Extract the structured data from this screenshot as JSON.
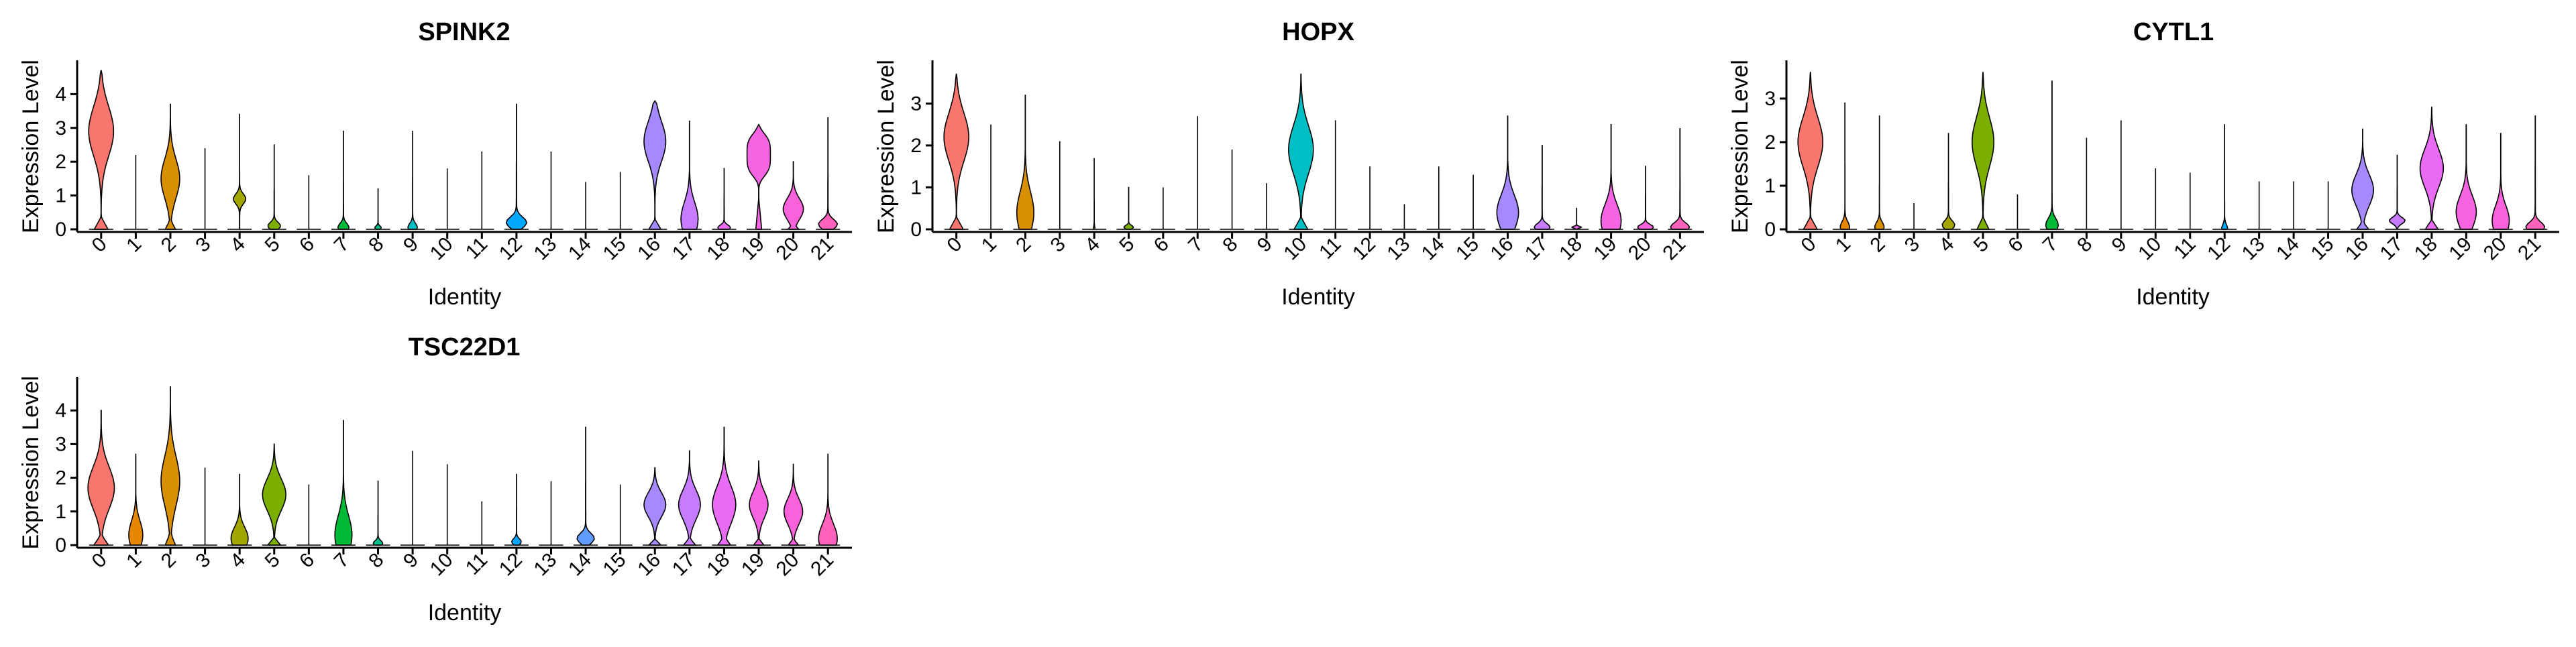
{
  "chart_data": [
    {
      "type": "violin",
      "title": "SPINK2",
      "xlabel": "Identity",
      "ylabel": "Expression Level",
      "categories": [
        "0",
        "1",
        "2",
        "3",
        "4",
        "5",
        "6",
        "7",
        "8",
        "9",
        "10",
        "11",
        "12",
        "13",
        "14",
        "15",
        "16",
        "17",
        "18",
        "19",
        "20",
        "21"
      ],
      "ylim": [
        0,
        4.9
      ],
      "yticks": [
        0,
        1,
        2,
        3,
        4
      ],
      "max_values": [
        4.7,
        2.2,
        3.7,
        2.4,
        3.4,
        2.5,
        1.6,
        2.9,
        1.2,
        2.9,
        1.8,
        2.3,
        3.7,
        2.3,
        1.4,
        1.7,
        3.8,
        3.2,
        1.8,
        3.1,
        2.0,
        3.3
      ],
      "violins": [
        {
          "peak": 2.9,
          "width": 0.8,
          "shape": "broad"
        },
        {
          "peak": 0.0,
          "width": 0.0,
          "shape": "line"
        },
        {
          "peak": 1.5,
          "width": 0.6,
          "shape": "broad"
        },
        {
          "peak": 0.0,
          "width": 0.0,
          "shape": "line"
        },
        {
          "peak": 0.9,
          "width": 0.4,
          "shape": "spike"
        },
        {
          "peak": 0.1,
          "width": 0.4,
          "shape": "spike"
        },
        {
          "peak": 0.0,
          "width": 0.0,
          "shape": "line"
        },
        {
          "peak": 0.05,
          "width": 0.35,
          "shape": "spike"
        },
        {
          "peak": 0.05,
          "width": 0.2,
          "shape": "spike"
        },
        {
          "peak": 0.05,
          "width": 0.3,
          "shape": "spike"
        },
        {
          "peak": 0.0,
          "width": 0.0,
          "shape": "line"
        },
        {
          "peak": 0.0,
          "width": 0.0,
          "shape": "line"
        },
        {
          "peak": 0.2,
          "width": 0.65,
          "shape": "spike"
        },
        {
          "peak": 0.0,
          "width": 0.0,
          "shape": "line"
        },
        {
          "peak": 0.0,
          "width": 0.0,
          "shape": "line"
        },
        {
          "peak": 0.0,
          "width": 0.0,
          "shape": "line"
        },
        {
          "peak": 2.6,
          "width": 0.7,
          "shape": "broad"
        },
        {
          "peak": 0.3,
          "width": 0.55,
          "shape": "broad"
        },
        {
          "peak": 0.05,
          "width": 0.4,
          "shape": "spike"
        },
        {
          "peak": 2.2,
          "width": 0.75,
          "shape": "flat"
        },
        {
          "peak": 0.6,
          "width": 0.65,
          "shape": "broad"
        },
        {
          "peak": 0.15,
          "width": 0.6,
          "shape": "spike"
        }
      ]
    },
    {
      "type": "violin",
      "title": "HOPX",
      "xlabel": "Identity",
      "ylabel": "Expression Level",
      "categories": [
        "0",
        "1",
        "2",
        "3",
        "4",
        "5",
        "6",
        "7",
        "8",
        "9",
        "10",
        "11",
        "12",
        "13",
        "14",
        "15",
        "16",
        "17",
        "18",
        "19",
        "20",
        "21"
      ],
      "ylim": [
        0,
        3.95
      ],
      "yticks": [
        0,
        1,
        2,
        3
      ],
      "max_values": [
        3.7,
        2.5,
        3.2,
        2.1,
        1.7,
        1.0,
        1.0,
        2.7,
        1.9,
        1.1,
        3.7,
        2.6,
        1.5,
        0.6,
        1.5,
        1.3,
        2.7,
        2.0,
        0.5,
        2.5,
        1.5,
        2.4
      ],
      "violins": [
        {
          "peak": 2.2,
          "width": 0.8,
          "shape": "broad"
        },
        {
          "peak": 0.0,
          "width": 0.0,
          "shape": "line"
        },
        {
          "peak": 0.4,
          "width": 0.55,
          "shape": "broad"
        },
        {
          "peak": 0.0,
          "width": 0.0,
          "shape": "line"
        },
        {
          "peak": 0.0,
          "width": 0.05,
          "shape": "spike"
        },
        {
          "peak": 0.05,
          "width": 0.3,
          "shape": "spike"
        },
        {
          "peak": 0.0,
          "width": 0.0,
          "shape": "line"
        },
        {
          "peak": 0.0,
          "width": 0.0,
          "shape": "line"
        },
        {
          "peak": 0.0,
          "width": 0.0,
          "shape": "line"
        },
        {
          "peak": 0.0,
          "width": 0.0,
          "shape": "line"
        },
        {
          "peak": 1.9,
          "width": 0.8,
          "shape": "broad"
        },
        {
          "peak": 0.0,
          "width": 0.0,
          "shape": "line"
        },
        {
          "peak": 0.0,
          "width": 0.0,
          "shape": "line"
        },
        {
          "peak": 0.0,
          "width": 0.0,
          "shape": "line"
        },
        {
          "peak": 0.0,
          "width": 0.0,
          "shape": "line"
        },
        {
          "peak": 0.0,
          "width": 0.0,
          "shape": "line"
        },
        {
          "peak": 0.4,
          "width": 0.7,
          "shape": "broad"
        },
        {
          "peak": 0.05,
          "width": 0.5,
          "shape": "spike"
        },
        {
          "peak": 0.05,
          "width": 0.3,
          "shape": "spike"
        },
        {
          "peak": 0.2,
          "width": 0.65,
          "shape": "broad"
        },
        {
          "peak": 0.05,
          "width": 0.5,
          "shape": "spike"
        },
        {
          "peak": 0.05,
          "width": 0.6,
          "shape": "spike"
        }
      ]
    },
    {
      "type": "violin",
      "title": "CYTL1",
      "xlabel": "Identity",
      "ylabel": "Expression Level",
      "categories": [
        "0",
        "1",
        "2",
        "3",
        "4",
        "5",
        "6",
        "7",
        "8",
        "9",
        "10",
        "11",
        "12",
        "13",
        "14",
        "15",
        "16",
        "17",
        "18",
        "19",
        "20",
        "21"
      ],
      "ylim": [
        0,
        3.8
      ],
      "yticks": [
        0,
        1,
        2,
        3
      ],
      "max_values": [
        3.6,
        2.9,
        2.6,
        0.6,
        2.2,
        3.6,
        0.8,
        3.4,
        2.1,
        2.5,
        1.4,
        1.3,
        2.4,
        1.1,
        1.1,
        1.1,
        2.3,
        1.7,
        2.8,
        2.4,
        2.2,
        2.6
      ],
      "violins": [
        {
          "peak": 2.0,
          "width": 0.8,
          "shape": "broad"
        },
        {
          "peak": 0.05,
          "width": 0.3,
          "shape": "spike"
        },
        {
          "peak": 0.05,
          "width": 0.3,
          "shape": "spike"
        },
        {
          "peak": 0.0,
          "width": 0.0,
          "shape": "line"
        },
        {
          "peak": 0.1,
          "width": 0.4,
          "shape": "spike"
        },
        {
          "peak": 2.0,
          "width": 0.7,
          "shape": "broad"
        },
        {
          "peak": 0.0,
          "width": 0.0,
          "shape": "line"
        },
        {
          "peak": 0.1,
          "width": 0.4,
          "shape": "spike"
        },
        {
          "peak": 0.0,
          "width": 0.0,
          "shape": "line"
        },
        {
          "peak": 0.0,
          "width": 0.0,
          "shape": "line"
        },
        {
          "peak": 0.0,
          "width": 0.0,
          "shape": "line"
        },
        {
          "peak": 0.0,
          "width": 0.0,
          "shape": "line"
        },
        {
          "peak": 0.0,
          "width": 0.2,
          "shape": "spike"
        },
        {
          "peak": 0.0,
          "width": 0.0,
          "shape": "line"
        },
        {
          "peak": 0.0,
          "width": 0.0,
          "shape": "line"
        },
        {
          "peak": 0.0,
          "width": 0.0,
          "shape": "line"
        },
        {
          "peak": 0.9,
          "width": 0.7,
          "shape": "broad"
        },
        {
          "peak": 0.2,
          "width": 0.5,
          "shape": "spike"
        },
        {
          "peak": 1.4,
          "width": 0.75,
          "shape": "broad"
        },
        {
          "peak": 0.4,
          "width": 0.65,
          "shape": "broad"
        },
        {
          "peak": 0.2,
          "width": 0.55,
          "shape": "broad"
        },
        {
          "peak": 0.05,
          "width": 0.6,
          "shape": "spike"
        }
      ]
    },
    {
      "type": "violin",
      "title": "TSC22D1",
      "xlabel": "Identity",
      "ylabel": "Expression Level",
      "categories": [
        "0",
        "1",
        "2",
        "3",
        "4",
        "5",
        "6",
        "7",
        "8",
        "9",
        "10",
        "11",
        "12",
        "13",
        "14",
        "15",
        "16",
        "17",
        "18",
        "19",
        "20",
        "21"
      ],
      "ylim": [
        0,
        4.9
      ],
      "yticks": [
        0,
        1,
        2,
        3,
        4
      ],
      "max_values": [
        4.0,
        2.7,
        4.7,
        2.3,
        2.1,
        3.0,
        1.8,
        3.7,
        1.9,
        2.8,
        2.4,
        1.3,
        2.1,
        1.9,
        3.5,
        1.8,
        2.3,
        2.8,
        3.5,
        2.5,
        2.4,
        2.7
      ],
      "violins": [
        {
          "peak": 1.7,
          "width": 0.85,
          "shape": "broad"
        },
        {
          "peak": 0.3,
          "width": 0.45,
          "shape": "broad"
        },
        {
          "peak": 1.9,
          "width": 0.6,
          "shape": "broad"
        },
        {
          "peak": 0.0,
          "width": 0.0,
          "shape": "line"
        },
        {
          "peak": 0.2,
          "width": 0.55,
          "shape": "broad"
        },
        {
          "peak": 1.5,
          "width": 0.75,
          "shape": "broad"
        },
        {
          "peak": 0.0,
          "width": 0.0,
          "shape": "line"
        },
        {
          "peak": 0.3,
          "width": 0.55,
          "shape": "broad"
        },
        {
          "peak": 0.05,
          "width": 0.3,
          "shape": "spike"
        },
        {
          "peak": 0.0,
          "width": 0.0,
          "shape": "line"
        },
        {
          "peak": 0.0,
          "width": 0.0,
          "shape": "line"
        },
        {
          "peak": 0.0,
          "width": 0.0,
          "shape": "line"
        },
        {
          "peak": 0.1,
          "width": 0.3,
          "shape": "spike"
        },
        {
          "peak": 0.0,
          "width": 0.0,
          "shape": "line"
        },
        {
          "peak": 0.2,
          "width": 0.55,
          "shape": "spike"
        },
        {
          "peak": 0.0,
          "width": 0.0,
          "shape": "line"
        },
        {
          "peak": 1.2,
          "width": 0.7,
          "shape": "broad"
        },
        {
          "peak": 1.2,
          "width": 0.7,
          "shape": "broad"
        },
        {
          "peak": 1.2,
          "width": 0.75,
          "shape": "broad"
        },
        {
          "peak": 1.2,
          "width": 0.6,
          "shape": "broad"
        },
        {
          "peak": 1.0,
          "width": 0.6,
          "shape": "broad"
        },
        {
          "peak": 0.2,
          "width": 0.6,
          "shape": "broad"
        }
      ]
    }
  ],
  "cluster_colors": [
    "#F8766D",
    "#EA8331",
    "#D89000",
    "#C09B00",
    "#A3A500",
    "#7CAE00",
    "#39B600",
    "#00BB4E",
    "#00BF7D",
    "#00C1A3",
    "#00BFC4",
    "#00BAE0",
    "#00B0F6",
    "#35A2FF",
    "#9590FF",
    "#C77CFF",
    "#E76BF3",
    "#FA62DB",
    "#FF62BC",
    "#FF6C91",
    "#F8766D",
    "#EA8331"
  ],
  "violin_fill_colors": [
    "#F8766D",
    "#E58700",
    "#C99800",
    "#A3A500",
    "#6BB100",
    "#00BA38",
    "#00BF7D",
    "#00C0AF",
    "#00BCD8",
    "#00B0F6",
    "#619CFF",
    "#B983FF",
    "#E76BF3",
    "#FD61D1",
    "#FF67A4",
    "#F8766D",
    "#E58700",
    "#C99800",
    "#A3A500",
    "#6BB100",
    "#00BA38",
    "#00BF7D"
  ]
}
